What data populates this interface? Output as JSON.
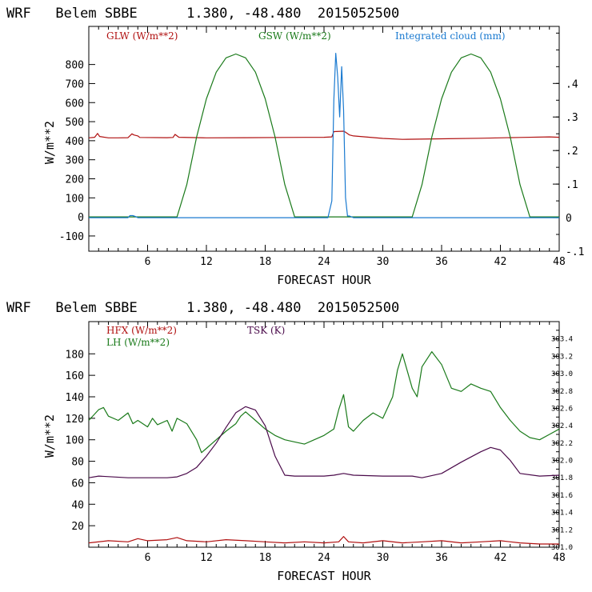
{
  "colors": {
    "glw": "#b01010",
    "gsw": "#1a7a1a",
    "cloud": "#1a7ad0",
    "hfx": "#b01010",
    "lh": "#1a7a1a",
    "tsk": "#4a0a4a"
  },
  "chart_data": [
    {
      "type": "line",
      "title": "WRF   Belem SBBE      1.380, -48.480  2015052500",
      "xlabel": "FORECAST HOUR",
      "ylabel": "W/m**2",
      "xlim": [
        0,
        48
      ],
      "ylim": [
        -180,
        1000
      ],
      "y2lim": [
        -0.1,
        0.57
      ],
      "xticks": [
        6,
        12,
        18,
        24,
        30,
        36,
        42,
        48
      ],
      "yticks": [
        -100,
        0,
        100,
        200,
        300,
        400,
        500,
        600,
        700,
        800
      ],
      "y2ticks": [
        -0.1,
        0,
        0.1,
        0.2,
        0.3,
        0.4
      ],
      "y2tick_labels": [
        "-.1",
        "0",
        ".1",
        ".2",
        ".3",
        ".4"
      ],
      "legend": [
        {
          "label": "GLW (W/m**2)",
          "series": "GLW"
        },
        {
          "label": "GSW (W/m**2)",
          "series": "GSW"
        },
        {
          "label": "Integrated cloud (mm)",
          "series": "Integrated cloud"
        }
      ],
      "series": [
        {
          "name": "GLW",
          "axis": "left",
          "x": [
            0,
            0.6,
            0.9,
            1.1,
            2,
            3,
            4,
            4.4,
            4.6,
            5,
            5.2,
            8,
            8.6,
            8.8,
            9.2,
            12,
            16,
            20,
            24,
            24.8,
            25,
            26,
            26.2,
            26.6,
            27,
            30,
            32,
            36,
            40,
            44,
            47,
            48
          ],
          "y": [
            415,
            418,
            438,
            422,
            415,
            415,
            416,
            436,
            430,
            425,
            417,
            416,
            417,
            433,
            418,
            415,
            416,
            417,
            418,
            420,
            448,
            450,
            445,
            430,
            425,
            412,
            407,
            410,
            413,
            417,
            420,
            418
          ]
        },
        {
          "name": "GSW",
          "axis": "left",
          "x": [
            0,
            9,
            10,
            11,
            12,
            13,
            14,
            15,
            16,
            17,
            18,
            19,
            20,
            21,
            22,
            24,
            30,
            33,
            34,
            35,
            36,
            37,
            38,
            39,
            40,
            41,
            42,
            43,
            44,
            45,
            46,
            48
          ],
          "y": [
            0,
            0,
            170,
            420,
            620,
            760,
            835,
            855,
            835,
            760,
            620,
            420,
            170,
            0,
            0,
            0,
            0,
            0,
            170,
            420,
            620,
            760,
            835,
            855,
            835,
            760,
            620,
            420,
            170,
            0,
            0,
            0
          ]
        },
        {
          "name": "Integrated cloud",
          "axis": "right",
          "x": [
            0,
            4,
            4.2,
            4.5,
            4.8,
            5,
            24.4,
            24.8,
            25,
            25.2,
            25.4,
            25.6,
            25.8,
            26,
            26.2,
            26.4,
            26.6,
            27,
            48
          ],
          "y": [
            0,
            0,
            0.006,
            0.006,
            0.003,
            0,
            0,
            0.05,
            0.35,
            0.49,
            0.42,
            0.3,
            0.45,
            0.32,
            0.06,
            0.005,
            0.005,
            0,
            0
          ]
        }
      ]
    },
    {
      "type": "line",
      "title": "WRF   Belem SBBE      1.380, -48.480  2015052500",
      "xlabel": "FORECAST HOUR",
      "ylabel": "W/m**2",
      "xlim": [
        0,
        48
      ],
      "ylim": [
        0,
        210
      ],
      "y2lim": [
        301.0,
        303.6
      ],
      "xticks": [
        6,
        12,
        18,
        24,
        30,
        36,
        42,
        48
      ],
      "yticks": [
        20,
        40,
        60,
        80,
        100,
        120,
        140,
        160,
        180
      ],
      "y2ticks": [
        301.0,
        301.2,
        301.4,
        301.6,
        301.8,
        302.0,
        302.2,
        302.4,
        302.6,
        302.8,
        303.0,
        303.2,
        303.4
      ],
      "y2tick_labels": [
        "301.0",
        "301.2",
        "301.4",
        "301.6",
        "301.8",
        "302.0",
        "302.2",
        "302.4",
        "302.6",
        "302.8",
        "303.0",
        "303.2",
        "303.4"
      ],
      "legend": [
        {
          "label": "HFX (W/m**2)",
          "series": "HFX"
        },
        {
          "label": "LH (W/m**2)",
          "series": "LH"
        },
        {
          "label": "TSK (K)",
          "series": "TSK"
        }
      ],
      "series": [
        {
          "name": "HFX",
          "axis": "left",
          "x": [
            0,
            2,
            4,
            5,
            6,
            8,
            9,
            10,
            12,
            14,
            16,
            18,
            20,
            22,
            24,
            25.5,
            26,
            26.5,
            28,
            30,
            32,
            34,
            36,
            38,
            40,
            42,
            44,
            46,
            48
          ],
          "y": [
            4,
            6,
            5,
            8,
            6,
            7,
            9,
            6,
            5,
            7,
            6,
            5,
            4,
            5,
            4,
            5,
            10,
            5,
            4,
            6,
            4,
            5,
            6,
            4,
            5,
            6,
            4,
            3,
            3
          ]
        },
        {
          "name": "LH",
          "axis": "left",
          "x": [
            0,
            1,
            1.5,
            2,
            3,
            4,
            4.5,
            5,
            6,
            6.5,
            7,
            8,
            8.5,
            9,
            10,
            11,
            11.5,
            12,
            13,
            14,
            15,
            15.5,
            16,
            17,
            18,
            19,
            20,
            21,
            22,
            23,
            24,
            25,
            25.5,
            26,
            26.5,
            27,
            28,
            29,
            30,
            31,
            31.5,
            32,
            33,
            33.5,
            34,
            35,
            36,
            37,
            38,
            39,
            40,
            41,
            42,
            43,
            44,
            45,
            46,
            47,
            48
          ],
          "y": [
            118,
            128,
            130,
            122,
            118,
            125,
            115,
            118,
            112,
            120,
            114,
            118,
            108,
            120,
            115,
            100,
            88,
            92,
            100,
            108,
            115,
            122,
            126,
            118,
            110,
            104,
            100,
            98,
            96,
            100,
            104,
            110,
            128,
            142,
            112,
            108,
            118,
            125,
            120,
            140,
            165,
            180,
            148,
            140,
            168,
            182,
            170,
            148,
            145,
            152,
            148,
            145,
            130,
            118,
            108,
            102,
            100,
            105,
            110
          ]
        },
        {
          "name": "TSK",
          "axis": "right",
          "x": [
            0,
            1,
            4,
            8,
            9,
            10,
            11,
            12,
            13,
            14,
            15,
            16,
            17,
            18,
            19,
            20,
            21,
            22,
            24,
            25,
            26,
            27,
            30,
            33,
            34,
            36,
            38,
            40,
            41,
            42,
            43,
            44,
            46,
            48
          ],
          "y": [
            301.8,
            301.82,
            301.8,
            301.8,
            301.81,
            301.85,
            301.92,
            302.05,
            302.2,
            302.38,
            302.55,
            302.62,
            302.58,
            302.4,
            302.05,
            301.83,
            301.82,
            301.82,
            301.82,
            301.83,
            301.85,
            301.83,
            301.82,
            301.82,
            301.8,
            301.85,
            301.98,
            302.1,
            302.15,
            302.12,
            302.0,
            301.85,
            301.82,
            301.83
          ]
        }
      ]
    }
  ]
}
